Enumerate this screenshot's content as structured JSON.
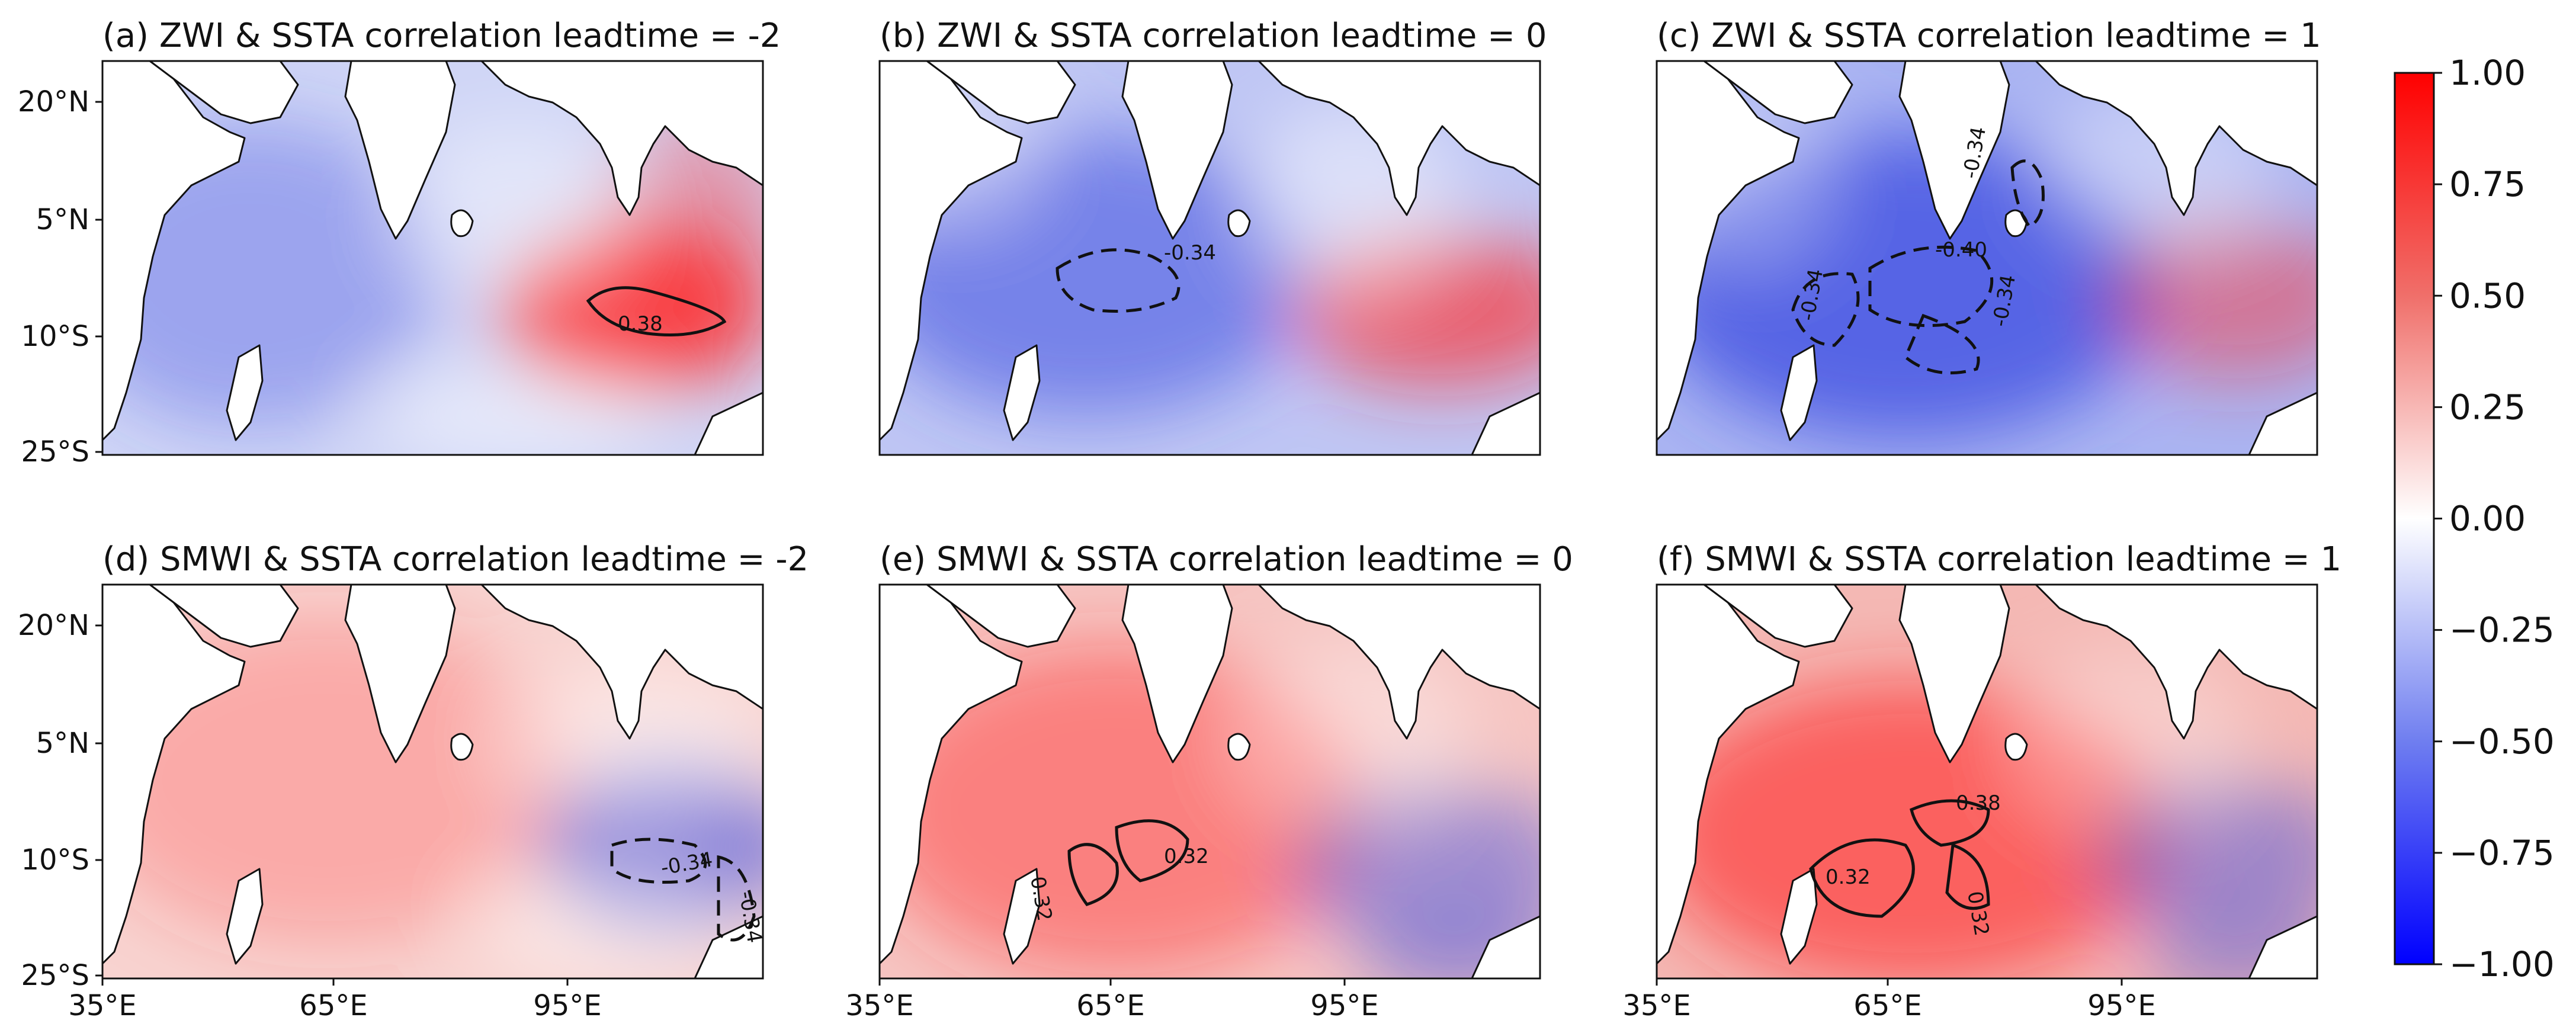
{
  "panels": [
    {
      "id": "a",
      "title": "(a) ZWI & SSTA correlation  leadtime = -2",
      "pattern": "zwi-m2",
      "contours": [
        {
          "label": "0.38",
          "style": "solid"
        }
      ]
    },
    {
      "id": "b",
      "title": "(b) ZWI & SSTA correlation  leadtime = 0",
      "pattern": "zwi-0",
      "contours": [
        {
          "label": "-0.34",
          "style": "dashed"
        }
      ]
    },
    {
      "id": "c",
      "title": "(c) ZWI & SSTA correlation  leadtime = 1",
      "pattern": "zwi-1",
      "contours": [
        {
          "label": "-0.34",
          "style": "dashed"
        },
        {
          "label": "-0.40",
          "style": "dashed"
        },
        {
          "label": "-0.34",
          "style": "dashed"
        },
        {
          "label": "-0.34",
          "style": "dashed"
        }
      ]
    },
    {
      "id": "d",
      "title": "(d) SMWI & SSTA correlation  leadtime = -2",
      "pattern": "smwi-m2",
      "contours": [
        {
          "label": "-0.34",
          "style": "dashed"
        },
        {
          "label": "-0.34",
          "style": "dashed"
        }
      ]
    },
    {
      "id": "e",
      "title": "(e) SMWI & SSTA correlation  leadtime = 0",
      "pattern": "smwi-0",
      "contours": [
        {
          "label": "0.32",
          "style": "solid"
        },
        {
          "label": "0.32",
          "style": "solid"
        }
      ]
    },
    {
      "id": "f",
      "title": "(f) SMWI & SSTA correlation  leadtime = 1",
      "pattern": "smwi-1",
      "contours": [
        {
          "label": "0.32",
          "style": "solid"
        },
        {
          "label": "0.38",
          "style": "solid"
        },
        {
          "label": "0.32",
          "style": "solid"
        }
      ]
    }
  ],
  "axes": {
    "lat_ticks": [
      "20°N",
      "5°N",
      "10°S",
      "25°S"
    ],
    "lon_ticks": [
      "35°E",
      "65°E",
      "95°E"
    ]
  },
  "colorbar": {
    "min": -1.0,
    "max": 1.0,
    "ticks": [
      "1.00",
      "0.75",
      "0.50",
      "0.25",
      "0.00",
      "−0.25",
      "−0.50",
      "−0.75",
      "−1.00"
    ],
    "colors": {
      "low": "#0000ff",
      "mid": "#ffffff",
      "high": "#ff0000"
    }
  }
}
